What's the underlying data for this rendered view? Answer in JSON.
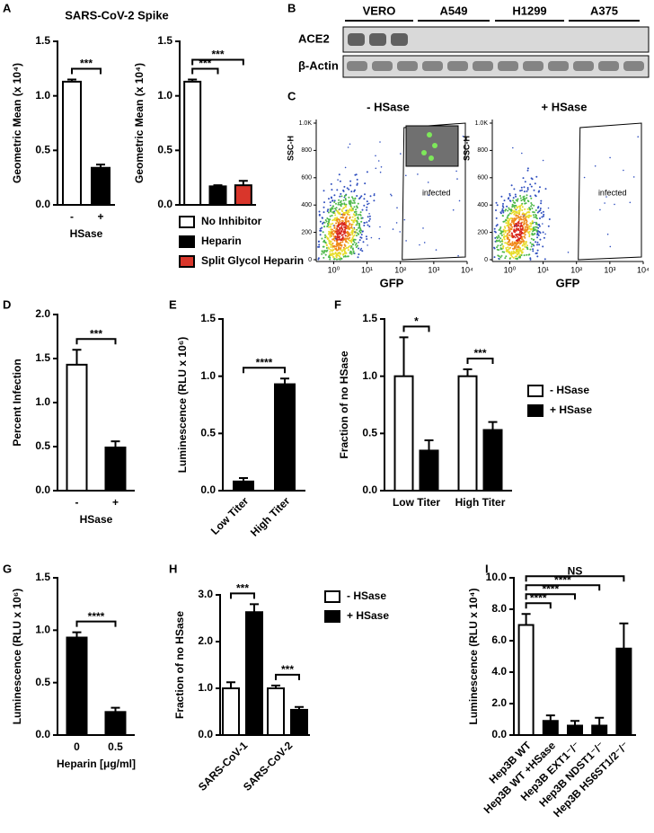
{
  "panels": [
    "A",
    "B",
    "C",
    "D",
    "E",
    "F",
    "G",
    "H",
    "I"
  ],
  "blot": {
    "columns": [
      "VERO",
      "A549",
      "H1299",
      "A375"
    ],
    "rows": [
      "ACE2",
      "β-Actin"
    ]
  },
  "flow": {
    "xlabel": "GFP",
    "ylabel": "SSC-H",
    "log_x": true,
    "xlim": [
      0.3,
      10000
    ],
    "xticks": [
      {
        "value": 1,
        "label": "10⁰"
      },
      {
        "value": 10,
        "label": "10¹"
      },
      {
        "value": 100,
        "label": "10²"
      },
      {
        "value": 1000,
        "label": "10³"
      },
      {
        "value": 10000,
        "label": "10⁴"
      }
    ],
    "ylim": [
      0,
      1000
    ],
    "yticks": [
      0,
      200,
      400,
      600,
      800,
      {
        "value": 1000,
        "label": "1.0K"
      }
    ],
    "plots": [
      {
        "title": "- HSase",
        "gate_label": "infected"
      },
      {
        "title": "+ HSase",
        "gate_label": "infected"
      }
    ]
  },
  "chart_data": [
    {
      "type": "bar",
      "title": "SARS-CoV-2 Spike",
      "y_label": "Geometric Mean (x 10⁴)",
      "x_label": "HSase",
      "categories": [
        "-",
        "+"
      ],
      "values": [
        1.13,
        0.34
      ],
      "errors": [
        0.02,
        0.03
      ],
      "colors": [
        "#ffffff",
        "#000000"
      ],
      "ylim": [
        0,
        1.5
      ],
      "yticks": [
        {
          "value": 0,
          "label": "0.0"
        },
        0.5,
        {
          "value": 1,
          "label": "1.0"
        },
        1.5
      ],
      "annotations": [
        {
          "text": "***",
          "pair": [
            0,
            1
          ]
        }
      ]
    },
    {
      "type": "bar",
      "y_label": "Geometric Mean (x 10⁴)",
      "categories": [
        null,
        null,
        null
      ],
      "values": [
        1.13,
        0.17,
        0.18
      ],
      "errors": [
        0.02,
        0.01,
        0.04
      ],
      "colors": [
        "#ffffff",
        "#000000",
        "#d9362b"
      ],
      "legend": [
        "No Inhibitor",
        "Heparin",
        "Split Glycol Heparin"
      ],
      "ylim": [
        0,
        1.5
      ],
      "yticks": [
        {
          "value": 0,
          "label": "0.0"
        },
        0.5,
        {
          "value": 1,
          "label": "1.0"
        },
        1.5
      ],
      "annotations": [
        {
          "text": "***",
          "pair": [
            0,
            1
          ]
        },
        {
          "text": "***",
          "pair": [
            0,
            2
          ]
        }
      ]
    },
    {
      "type": "bar",
      "y_label": "Percent Infection",
      "x_label": "HSase",
      "categories": [
        "-",
        "+"
      ],
      "values": [
        1.43,
        0.49
      ],
      "errors": [
        0.17,
        0.07
      ],
      "colors": [
        "#ffffff",
        "#000000"
      ],
      "ylim": [
        0,
        2
      ],
      "yticks": [
        {
          "value": 0,
          "label": "0.0"
        },
        0.5,
        {
          "value": 1,
          "label": "1.0"
        },
        1.5,
        {
          "value": 2,
          "label": "2.0"
        }
      ],
      "annotations": [
        {
          "text": "***",
          "pair": [
            0,
            1
          ]
        }
      ]
    },
    {
      "type": "bar",
      "y_label": "Luminescence (RLU x 10⁶)",
      "categories": [
        "Low Titer",
        "High Titer"
      ],
      "values": [
        0.08,
        0.93
      ],
      "errors": [
        0.03,
        0.05
      ],
      "colors": [
        "#000000",
        "#000000"
      ],
      "ylim": [
        0,
        1.5
      ],
      "yticks": [
        {
          "value": 0,
          "label": "0.0"
        },
        0.5,
        {
          "value": 1,
          "label": "1.0"
        },
        1.5
      ],
      "annotations": [
        {
          "text": "****",
          "pair": [
            0,
            1
          ]
        }
      ]
    },
    {
      "type": "grouped_bar",
      "y_label": "Fraction of no HSase",
      "categories": [
        "Low Titer",
        "High Titer"
      ],
      "series": [
        {
          "name": "- HSase",
          "color": "#ffffff",
          "values": [
            1.0,
            1.0
          ],
          "errors": [
            0.34,
            0.06
          ]
        },
        {
          "name": "+ HSase",
          "color": "#000000",
          "values": [
            0.35,
            0.53
          ],
          "errors": [
            0.09,
            0.07
          ]
        }
      ],
      "ylim": [
        0,
        1.5
      ],
      "yticks": [
        {
          "value": 0,
          "label": "0.0"
        },
        0.5,
        {
          "value": 1,
          "label": "1.0"
        },
        1.5
      ],
      "annotations": [
        {
          "text": "*",
          "category": 0
        },
        {
          "text": "***",
          "category": 1
        }
      ]
    },
    {
      "type": "bar",
      "y_label": "Luminescence (RLU x 10⁶)",
      "x_label": "Heparin [μg/ml]",
      "categories": [
        "0",
        "0.5"
      ],
      "values": [
        0.93,
        0.22
      ],
      "errors": [
        0.05,
        0.04
      ],
      "colors": [
        "#000000",
        "#000000"
      ],
      "ylim": [
        0,
        1.5
      ],
      "yticks": [
        {
          "value": 0,
          "label": "0.0"
        },
        0.5,
        {
          "value": 1,
          "label": "1.0"
        },
        1.5
      ],
      "annotations": [
        {
          "text": "****",
          "pair": [
            0,
            1
          ]
        }
      ]
    },
    {
      "type": "grouped_bar",
      "y_label": "Fraction of no HSase",
      "categories": [
        "SARS-CoV-1",
        "SARS-CoV-2"
      ],
      "series": [
        {
          "name": "- HSase",
          "color": "#ffffff",
          "values": [
            1.0,
            1.0
          ],
          "errors": [
            0.13,
            0.06
          ]
        },
        {
          "name": "+ HSase",
          "color": "#000000",
          "values": [
            2.63,
            0.54
          ],
          "errors": [
            0.17,
            0.06
          ]
        }
      ],
      "ylim": [
        0,
        3
      ],
      "yticks": [
        {
          "value": 0,
          "label": "0.0"
        },
        {
          "value": 1,
          "label": "1.0"
        },
        {
          "value": 2,
          "label": "2.0"
        },
        {
          "value": 3,
          "label": "3.0"
        }
      ],
      "annotations": [
        {
          "text": "***",
          "category": 0
        },
        {
          "text": "***",
          "category": 1
        }
      ]
    },
    {
      "type": "bar",
      "y_label": "Luminescence (RLU x 10⁴)",
      "categories": [
        "Hep3B WT",
        "Hep3B WT +HSase",
        "Hep3B EXT1⁻/⁻",
        "Hep3B NDST1⁻/⁻",
        "Hep3B HS6ST1/2⁻/⁻"
      ],
      "values": [
        7.0,
        0.9,
        0.6,
        0.6,
        5.5
      ],
      "errors": [
        0.7,
        0.35,
        0.3,
        0.5,
        1.6
      ],
      "colors": [
        "#ffffff",
        "#000000",
        "#000000",
        "#000000",
        "#000000"
      ],
      "ylim": [
        0,
        10
      ],
      "yticks": [
        {
          "value": 0,
          "label": "0.0"
        },
        {
          "value": 2,
          "label": "2.0"
        },
        {
          "value": 4,
          "label": "4.0"
        },
        {
          "value": 6,
          "label": "6.0"
        },
        {
          "value": 8,
          "label": "8.0"
        },
        {
          "value": 10,
          "label": "10.0"
        }
      ],
      "annotations": [
        {
          "text": "****",
          "pair": [
            0,
            1
          ]
        },
        {
          "text": "****",
          "pair": [
            0,
            2
          ]
        },
        {
          "text": "****",
          "pair": [
            0,
            3
          ]
        },
        {
          "text": "NS",
          "pair": [
            0,
            4
          ]
        }
      ]
    }
  ]
}
